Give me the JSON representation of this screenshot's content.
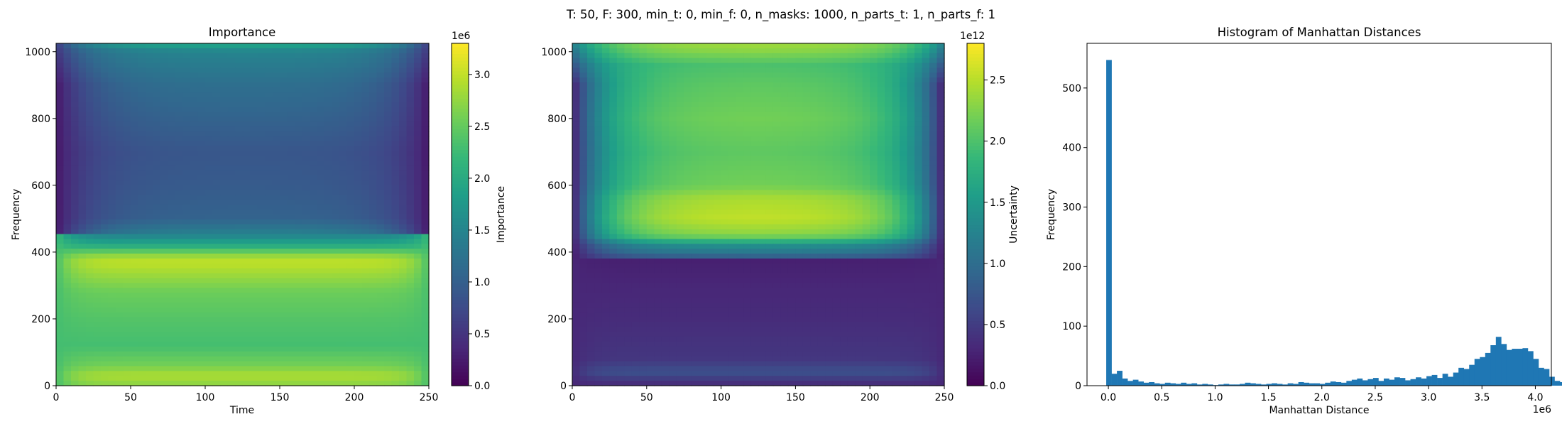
{
  "suptitle": "T: 50, F: 300, min_t: 0, min_f: 0, n_masks: 1000, n_parts_t: 1, n_parts_f: 1",
  "colors": {
    "hist_bar": "#1f77b4",
    "axis": "#000000"
  },
  "viridis": [
    "#440154",
    "#482878",
    "#3e4989",
    "#31688e",
    "#26828e",
    "#1f9e89",
    "#35b779",
    "#6ece58",
    "#b5de2b",
    "#fde725"
  ],
  "chart_data": [
    {
      "type": "heatmap",
      "title": "Importance",
      "xlabel": "Time",
      "ylabel": "Frequency",
      "xlim": [
        0,
        250
      ],
      "ylim": [
        0,
        1025
      ],
      "xticks": [
        "0",
        "50",
        "100",
        "150",
        "200",
        "250"
      ],
      "yticks": [
        "0",
        "200",
        "400",
        "600",
        "800",
        "1000"
      ],
      "colorbar": {
        "label": "Importance",
        "range": [
          0,
          3.3
        ],
        "ticks": [
          "0.0",
          "0.5",
          "1.0",
          "1.5",
          "2.0",
          "2.5",
          "3.0"
        ],
        "offset": "1e6"
      },
      "freq_profile": [
        [
          0,
          2.7
        ],
        [
          30,
          2.9
        ],
        [
          60,
          2.6
        ],
        [
          120,
          2.3
        ],
        [
          200,
          2.4
        ],
        [
          280,
          2.55
        ],
        [
          330,
          2.8
        ],
        [
          370,
          3.0
        ],
        [
          390,
          2.75
        ],
        [
          420,
          2.0
        ],
        [
          450,
          1.5
        ],
        [
          500,
          1.05
        ],
        [
          600,
          0.95
        ],
        [
          700,
          0.9
        ],
        [
          800,
          1.05
        ],
        [
          900,
          1.2
        ],
        [
          1000,
          1.5
        ],
        [
          1025,
          2.0
        ]
      ],
      "edge_effect": {
        "low_freq_max": 450,
        "low_freq_edge_value": 2.3,
        "high_freq_edge_value": 0.2,
        "high_freq_edge_near_top": 0.6
      }
    },
    {
      "type": "heatmap",
      "title": "",
      "xlabel": "",
      "ylabel": "",
      "xlim": [
        0,
        250
      ],
      "ylim": [
        0,
        1025
      ],
      "xticks": [
        "0",
        "50",
        "100",
        "150",
        "200",
        "250"
      ],
      "yticks": [
        "0",
        "200",
        "400",
        "600",
        "800",
        "1000"
      ],
      "colorbar": {
        "label": "Uncertainty",
        "range": [
          0,
          2.8
        ],
        "ticks": [
          "0.0",
          "0.5",
          "1.0",
          "1.5",
          "2.0",
          "2.5"
        ],
        "offset": "1e12"
      },
      "freq_profile": [
        [
          0,
          0.3
        ],
        [
          40,
          0.7
        ],
        [
          80,
          0.45
        ],
        [
          200,
          0.35
        ],
        [
          300,
          0.3
        ],
        [
          375,
          0.25
        ],
        [
          390,
          1.0
        ],
        [
          420,
          1.4
        ],
        [
          450,
          2.3
        ],
        [
          500,
          2.55
        ],
        [
          560,
          2.45
        ],
        [
          600,
          2.2
        ],
        [
          700,
          2.1
        ],
        [
          800,
          2.2
        ],
        [
          900,
          2.1
        ],
        [
          960,
          2.0
        ],
        [
          1000,
          2.3
        ],
        [
          1025,
          2.4
        ]
      ],
      "edge_effect": {
        "low_freq_max": 380,
        "low_freq_edge_value": 0.3,
        "high_freq_edge_value": 0.2,
        "high_freq_edge_near_top": 1.2
      }
    },
    {
      "type": "bar",
      "title": "Histogram of Manhattan Distances",
      "xlabel": "Manhattan Distance",
      "ylabel": "Frequency",
      "x_offset": "1e6",
      "xlim": [
        -0.2,
        4.15
      ],
      "ylim": [
        0,
        575
      ],
      "xticks": [
        "0.0",
        "0.5",
        "1.0",
        "1.5",
        "2.0",
        "2.5",
        "3.0",
        "3.5",
        "4.0"
      ],
      "yticks": [
        "0",
        "100",
        "200",
        "300",
        "400",
        "500"
      ],
      "bin_start": -0.02,
      "bin_width": 0.05,
      "counts": [
        547,
        20,
        25,
        12,
        8,
        10,
        7,
        5,
        6,
        4,
        3,
        5,
        4,
        3,
        5,
        3,
        4,
        2,
        3,
        2,
        1,
        2,
        3,
        2,
        2,
        3,
        5,
        4,
        3,
        2,
        3,
        4,
        3,
        2,
        4,
        3,
        6,
        5,
        4,
        4,
        3,
        5,
        7,
        6,
        5,
        8,
        10,
        12,
        9,
        11,
        13,
        8,
        12,
        10,
        14,
        13,
        9,
        11,
        14,
        12,
        16,
        18,
        13,
        20,
        15,
        22,
        30,
        28,
        35,
        45,
        48,
        55,
        68,
        82,
        70,
        60,
        62,
        62,
        63,
        58,
        45,
        30,
        28,
        15,
        8,
        6,
        3,
        2,
        2,
        1,
        0,
        0
      ]
    }
  ]
}
